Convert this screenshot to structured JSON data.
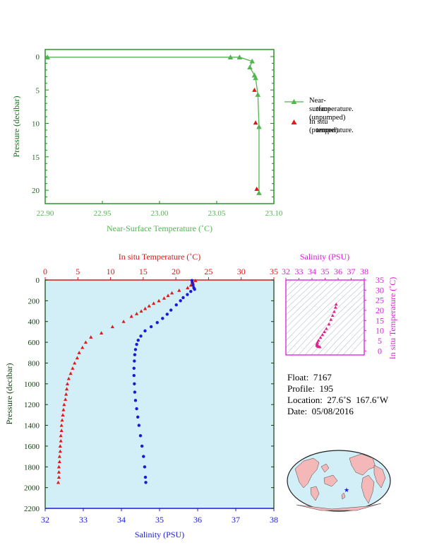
{
  "chart_data": [
    {
      "type": "line",
      "xlabel": "Near-Surface Temperature (˚C)",
      "ylabel": "Pressure (decibar)",
      "xlim": [
        22.9,
        23.1
      ],
      "ylim": [
        0,
        22
      ],
      "y_inverted": true,
      "xticks": [
        "22.90",
        "22.95",
        "23.00",
        "23.05",
        "23.10"
      ],
      "yticks": [
        "0",
        "5",
        "10",
        "15",
        "20"
      ],
      "grid": false,
      "legend_position": "right",
      "series": [
        {
          "name": "Near-surface (unpumped) temperature.",
          "color": "#52b552",
          "marker": "triangle",
          "points": [
            [
              22.902,
              0.1
            ],
            [
              23.062,
              0.1
            ],
            [
              23.07,
              0.1
            ],
            [
              23.081,
              0.7
            ],
            [
              23.079,
              1.6
            ],
            [
              23.083,
              2.8
            ],
            [
              23.084,
              3.2
            ],
            [
              23.086,
              5.7
            ],
            [
              23.087,
              10.5
            ],
            [
              23.087,
              20.4
            ]
          ]
        },
        {
          "name": "In situ (pumped) temperature.",
          "color": "#d81818",
          "marker": "triangle",
          "points": [
            [
              23.083,
              5.0
            ],
            [
              23.084,
              9.9
            ],
            [
              23.085,
              19.8
            ]
          ]
        }
      ]
    },
    {
      "type": "scatter",
      "title": "In situ Temperature (˚C)",
      "xlabel": "Salinity (PSU)",
      "ylabel": "Pressure (decibar)",
      "xlim_temperature": [
        0,
        35
      ],
      "xlim_salinity": [
        32,
        38
      ],
      "ylim": [
        0,
        2200
      ],
      "y_inverted": true,
      "xticks_temperature": [
        "0",
        "5",
        "10",
        "15",
        "20",
        "25",
        "30",
        "35"
      ],
      "xticks_salinity": [
        "32",
        "33",
        "34",
        "35",
        "36",
        "37",
        "38"
      ],
      "yticks": [
        "0",
        "200",
        "400",
        "600",
        "800",
        "1000",
        "1200",
        "1400",
        "1600",
        "1800",
        "2000",
        "2200"
      ],
      "grid": false,
      "background": "#d2eef6",
      "series": [
        {
          "name": "In situ Temperature (˚C)",
          "color": "#e01a1a",
          "marker": "triangle",
          "points": [
            [
              23.0,
              5
            ],
            [
              22.6,
              25
            ],
            [
              22.3,
              50
            ],
            [
              21.8,
              75
            ],
            [
              20.5,
              100
            ],
            [
              19.4,
              125
            ],
            [
              18.8,
              150
            ],
            [
              18.2,
              175
            ],
            [
              17.4,
              200
            ],
            [
              16.6,
              225
            ],
            [
              15.9,
              250
            ],
            [
              15.3,
              275
            ],
            [
              14.7,
              300
            ],
            [
              14.0,
              325
            ],
            [
              13.2,
              350
            ],
            [
              12.0,
              400
            ],
            [
              10.3,
              450
            ],
            [
              8.6,
              510
            ],
            [
              7.0,
              550
            ],
            [
              6.2,
              600
            ],
            [
              5.7,
              650
            ],
            [
              5.2,
              700
            ],
            [
              4.9,
              750
            ],
            [
              4.5,
              800
            ],
            [
              4.2,
              850
            ],
            [
              3.9,
              900
            ],
            [
              3.6,
              950
            ],
            [
              3.4,
              1000
            ],
            [
              3.3,
              1050
            ],
            [
              3.2,
              1100
            ],
            [
              3.1,
              1150
            ],
            [
              2.9,
              1200
            ],
            [
              2.8,
              1250
            ],
            [
              2.7,
              1300
            ],
            [
              2.6,
              1350
            ],
            [
              2.5,
              1400
            ],
            [
              2.5,
              1450
            ],
            [
              2.4,
              1500
            ],
            [
              2.4,
              1550
            ],
            [
              2.3,
              1600
            ],
            [
              2.3,
              1650
            ],
            [
              2.2,
              1700
            ],
            [
              2.2,
              1750
            ],
            [
              2.1,
              1800
            ],
            [
              2.1,
              1850
            ],
            [
              2.1,
              1900
            ],
            [
              2.0,
              1950
            ]
          ]
        },
        {
          "name": "Salinity (PSU)",
          "color": "#1a1ad6",
          "marker": "circle",
          "points": [
            [
              35.85,
              5
            ],
            [
              35.86,
              25
            ],
            [
              35.88,
              50
            ],
            [
              35.9,
              75
            ],
            [
              35.92,
              90
            ],
            [
              35.82,
              110
            ],
            [
              35.73,
              140
            ],
            [
              35.62,
              170
            ],
            [
              35.55,
              200
            ],
            [
              35.44,
              240
            ],
            [
              35.3,
              290
            ],
            [
              35.2,
              330
            ],
            [
              35.08,
              370
            ],
            [
              34.94,
              410
            ],
            [
              34.78,
              450
            ],
            [
              34.62,
              490
            ],
            [
              34.51,
              540
            ],
            [
              34.44,
              580
            ],
            [
              34.4,
              620
            ],
            [
              34.37,
              670
            ],
            [
              34.35,
              720
            ],
            [
              34.34,
              780
            ],
            [
              34.33,
              850
            ],
            [
              34.33,
              920
            ],
            [
              34.34,
              1000
            ],
            [
              34.35,
              1080
            ],
            [
              34.37,
              1160
            ],
            [
              34.4,
              1240
            ],
            [
              34.43,
              1320
            ],
            [
              34.46,
              1400
            ],
            [
              34.5,
              1500
            ],
            [
              34.54,
              1600
            ],
            [
              34.58,
              1700
            ],
            [
              34.61,
              1800
            ],
            [
              34.63,
              1900
            ],
            [
              34.64,
              1950
            ]
          ]
        }
      ]
    },
    {
      "type": "scatter",
      "title": "Salinity (PSU)",
      "ylabel": "In situ Temperature (˚C)",
      "xlim": [
        32,
        38
      ],
      "ylim": [
        -2,
        35
      ],
      "xticks": [
        "32",
        "33",
        "34",
        "35",
        "36",
        "37",
        "38"
      ],
      "yticks": [
        "0",
        "5",
        "10",
        "15",
        "20",
        "25",
        "30",
        "35"
      ],
      "grid": false,
      "color": "#e0208c",
      "points": [
        [
          35.85,
          23.0
        ],
        [
          35.8,
          21.5
        ],
        [
          35.7,
          19.4
        ],
        [
          35.58,
          17.5
        ],
        [
          35.45,
          15.5
        ],
        [
          35.3,
          13.2
        ],
        [
          35.1,
          11.0
        ],
        [
          34.95,
          9.5
        ],
        [
          34.8,
          8.0
        ],
        [
          34.65,
          6.6
        ],
        [
          34.5,
          5.2
        ],
        [
          34.42,
          4.2
        ],
        [
          34.38,
          3.6
        ],
        [
          34.37,
          3.0
        ],
        [
          34.4,
          2.6
        ],
        [
          34.45,
          2.3
        ],
        [
          34.52,
          2.1
        ],
        [
          34.6,
          2.0
        ]
      ]
    }
  ],
  "info": {
    "float": "Float:  7167",
    "profile": "Profile:  195",
    "location": "Location:  27.6˚S  167.6˚W",
    "date": "Date:  05/08/2016"
  },
  "legend": {
    "unpumped_line1": "Near-surface (unpumped)",
    "unpumped_line2": "temperature.",
    "pumped_line1": "In situ (pumped)",
    "pumped_line2": "temperature."
  },
  "colors": {
    "green": "#52b552",
    "red": "#e01a1a",
    "blue": "#1a1ad6",
    "magenta": "#e0208c",
    "ocean": "#d2eef6",
    "land": "#f4b8b8"
  }
}
